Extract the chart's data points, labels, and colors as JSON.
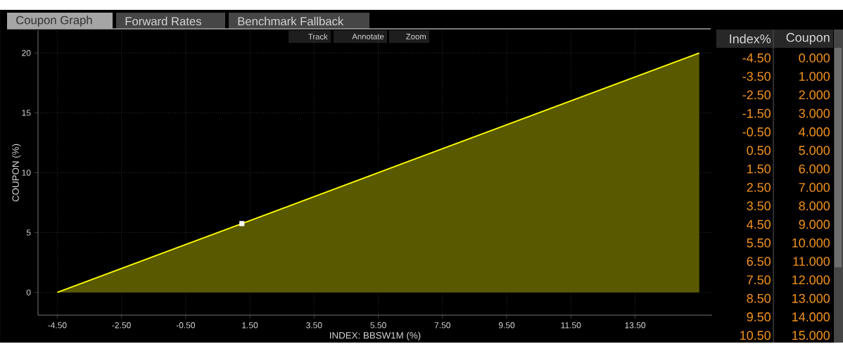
{
  "chart_data": [
    {
      "type": "area",
      "xlabel": "INDEX: BBSW1M (%)",
      "ylabel": "COUPON (%)",
      "annotations": [
        "Coupon Graph",
        "Forward Rates",
        "Benchmark Fallback",
        "Track",
        "Annotate",
        "Zoom",
        "Index%",
        "Coupon",
        "-4.50",
        "0.000",
        "-3.50",
        "1.000",
        "-2.50",
        "2.000",
        "-1.50",
        "3.000",
        "-0.50",
        "4.000",
        "0.50",
        "5.000",
        "1.50",
        "6.000",
        "2.50",
        "7.000",
        "3.50",
        "8.000",
        "4.50",
        "9.000",
        "5.50",
        "10.000",
        "6.50",
        "11.000",
        "7.50",
        "12.000",
        "8.50",
        "13.000",
        "9.50",
        "14.000",
        "10.50",
        "15.000"
      ],
      "series": [
        {
          "type": "area",
          "color": "#ffff00",
          "x": [
            -4.5,
            -3.5,
            -2.5,
            -1.5,
            -0.5,
            0.5,
            1.5,
            2.5,
            3.5,
            4.5,
            5.5,
            6.5,
            7.5,
            8.5,
            9.5,
            10.5,
            11.5,
            12.5,
            13.5,
            14.5,
            15.5
          ],
          "values": [
            0,
            1,
            2,
            3,
            4,
            5,
            6,
            7,
            8,
            9,
            10,
            11,
            12,
            13,
            14,
            15,
            16,
            17,
            18,
            19,
            20
          ]
        },
        {
          "type": "scatter",
          "color": "#ffffff",
          "marker": "square",
          "x": [
            1.25
          ],
          "values": [
            5.75
          ]
        }
      ],
      "xlim": [
        -5.1,
        15.9
      ],
      "ylim": [
        -1.9,
        21.9
      ],
      "xticks": [
        {
          "value": -4.5,
          "label": "-4.50"
        },
        {
          "value": -2.5,
          "label": "-2.50"
        },
        {
          "value": -0.5,
          "label": "-0.50"
        },
        {
          "value": 1.5,
          "label": "1.50"
        },
        {
          "value": 3.5,
          "label": "3.50"
        },
        {
          "value": 5.5,
          "label": "5.50"
        },
        {
          "value": 7.5,
          "label": "7.50"
        },
        {
          "value": 9.5,
          "label": "9.50"
        },
        {
          "value": 11.5,
          "label": "11.50"
        },
        {
          "value": 13.5,
          "label": "13.50"
        }
      ],
      "yticks": [
        0,
        5,
        10,
        15,
        20
      ],
      "grid": true
    }
  ]
}
